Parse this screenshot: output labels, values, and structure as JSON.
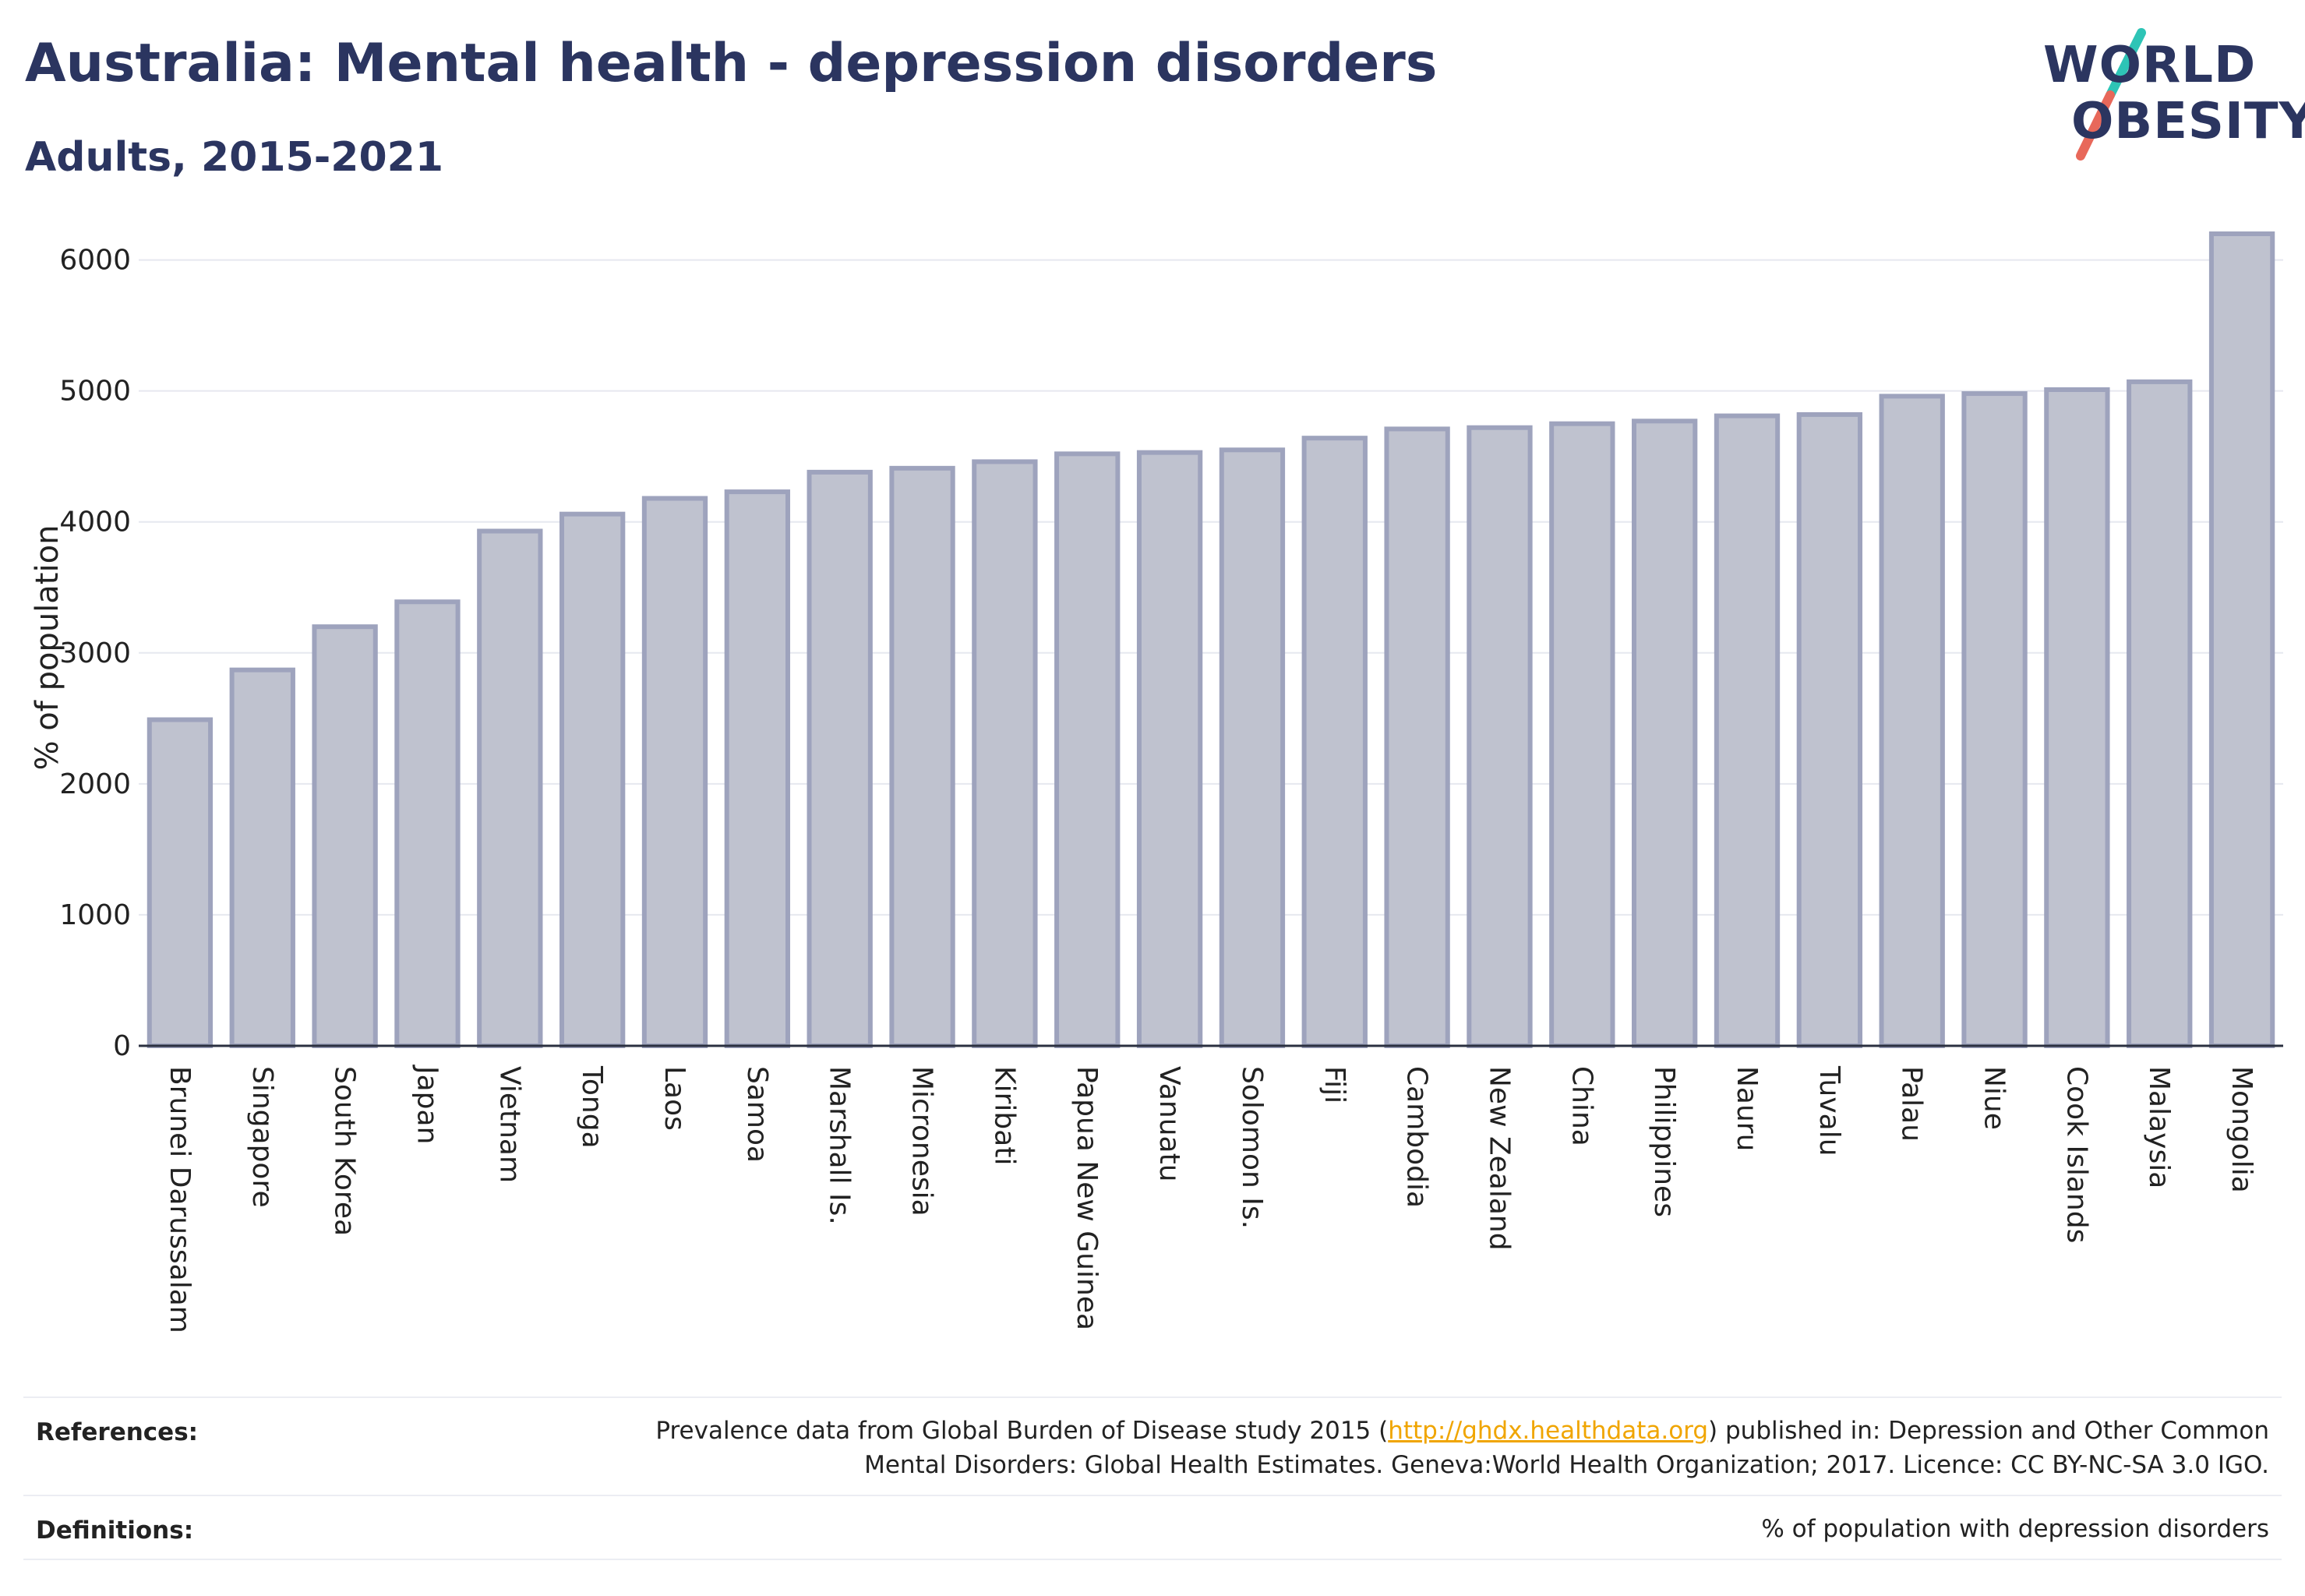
{
  "header": {
    "title": "Australia: Mental health - depression disorders",
    "subtitle": "Adults, 2015-2021"
  },
  "logo": {
    "line1": "WORLD",
    "line2": "OBESITY",
    "slash_colors": [
      "#2ec4b6",
      "#e8685a"
    ]
  },
  "colors": {
    "bar_fill": "#bfc2cf",
    "bar_stroke": "#9ea3bd",
    "text": "#2b3560",
    "link": "#f0a500"
  },
  "chart_data": {
    "type": "bar",
    "ylabel": "% of population",
    "xlabel": "",
    "ylim": [
      0,
      6200
    ],
    "yticks": [
      0,
      1000,
      2000,
      3000,
      4000,
      5000,
      6000
    ],
    "grid": true,
    "categories": [
      "Brunei Darussalam",
      "Singapore",
      "South Korea",
      "Japan",
      "Vietnam",
      "Tonga",
      "Laos",
      "Samoa",
      "Marshall Is.",
      "Micronesia",
      "Kiribati",
      "Papua New Guinea",
      "Vanuatu",
      "Solomon Is.",
      "Fiji",
      "Cambodia",
      "New Zealand",
      "China",
      "Philippines",
      "Nauru",
      "Tuvalu",
      "Palau",
      "Niue",
      "Cook Islands",
      "Malaysia",
      "Mongolia"
    ],
    "values": [
      2490,
      2870,
      3200,
      3390,
      3930,
      4060,
      4180,
      4230,
      4380,
      4410,
      4460,
      4520,
      4530,
      4550,
      4640,
      4710,
      4720,
      4750,
      4770,
      4810,
      4820,
      4960,
      4980,
      5010,
      5070,
      6200
    ]
  },
  "references": {
    "label": "References:",
    "line1_pre": "Prevalence data from Global Burden of Disease study 2015 (",
    "link": "http://ghdx.healthdata.org",
    "line1_post": ") published in: Depression and Other Common",
    "line2": "Mental Disorders: Global Health Estimates. Geneva:World Health Organization; 2017. Licence: CC BY-NC-SA 3.0 IGO."
  },
  "definitions": {
    "label": "Definitions:",
    "text": "% of population with depression disorders"
  }
}
